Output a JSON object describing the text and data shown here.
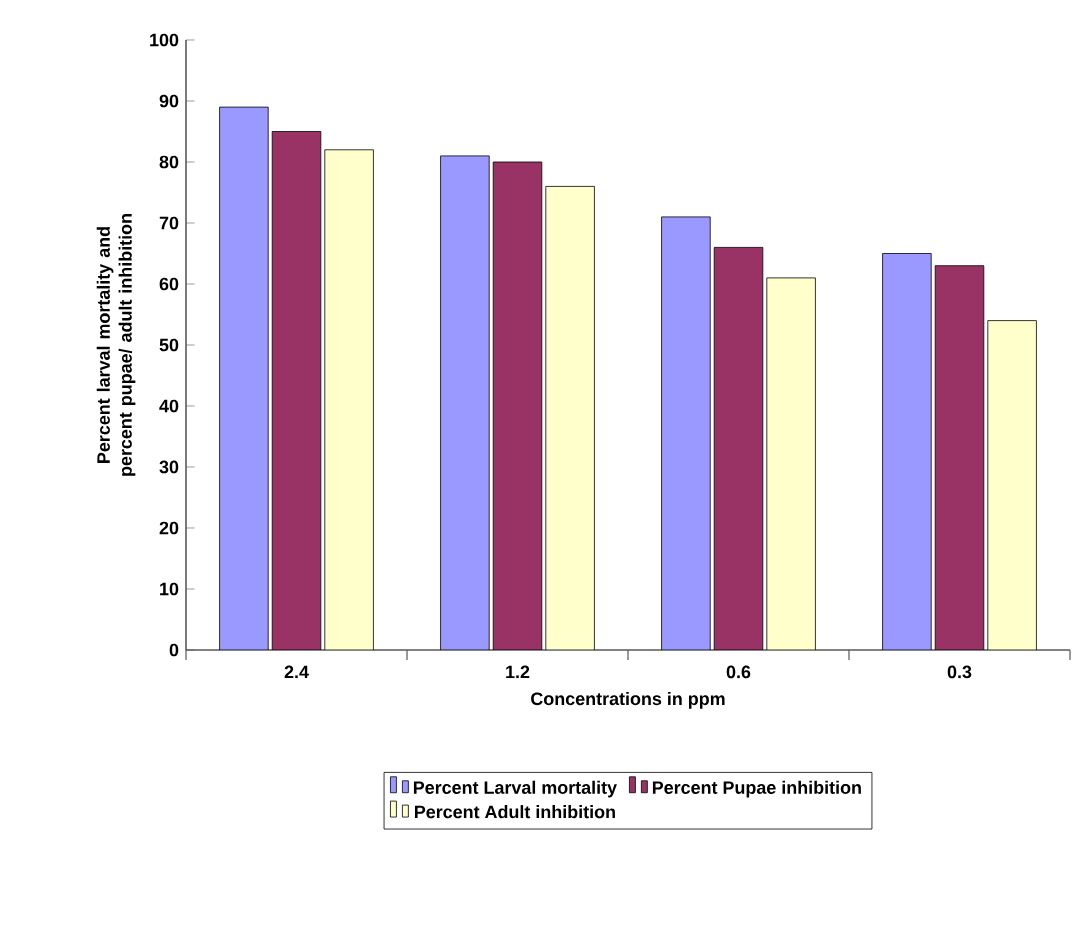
{
  "chart_data": {
    "type": "bar",
    "xlabel": "Concentrations in ppm",
    "ylabel": "Percent larval mortality and percent pupae/ adult inhibition",
    "categories": [
      "2.4",
      "1.2",
      "0.6",
      "0.3"
    ],
    "series": [
      {
        "name": "Percent Larval mortality",
        "color": "#9999ff",
        "values": [
          89,
          81,
          71,
          65
        ]
      },
      {
        "name": "Percent Pupae inhibition",
        "color": "#993366",
        "values": [
          85,
          80,
          66,
          63
        ]
      },
      {
        "name": "Percent Adult inhibition",
        "color": "#ffffcc",
        "values": [
          82,
          76,
          61,
          54
        ]
      }
    ],
    "ylim": [
      0,
      100
    ],
    "yticks": [
      0,
      10,
      20,
      30,
      40,
      50,
      60,
      70,
      80,
      90,
      100
    ],
    "grid": false,
    "legend": "bottom"
  }
}
